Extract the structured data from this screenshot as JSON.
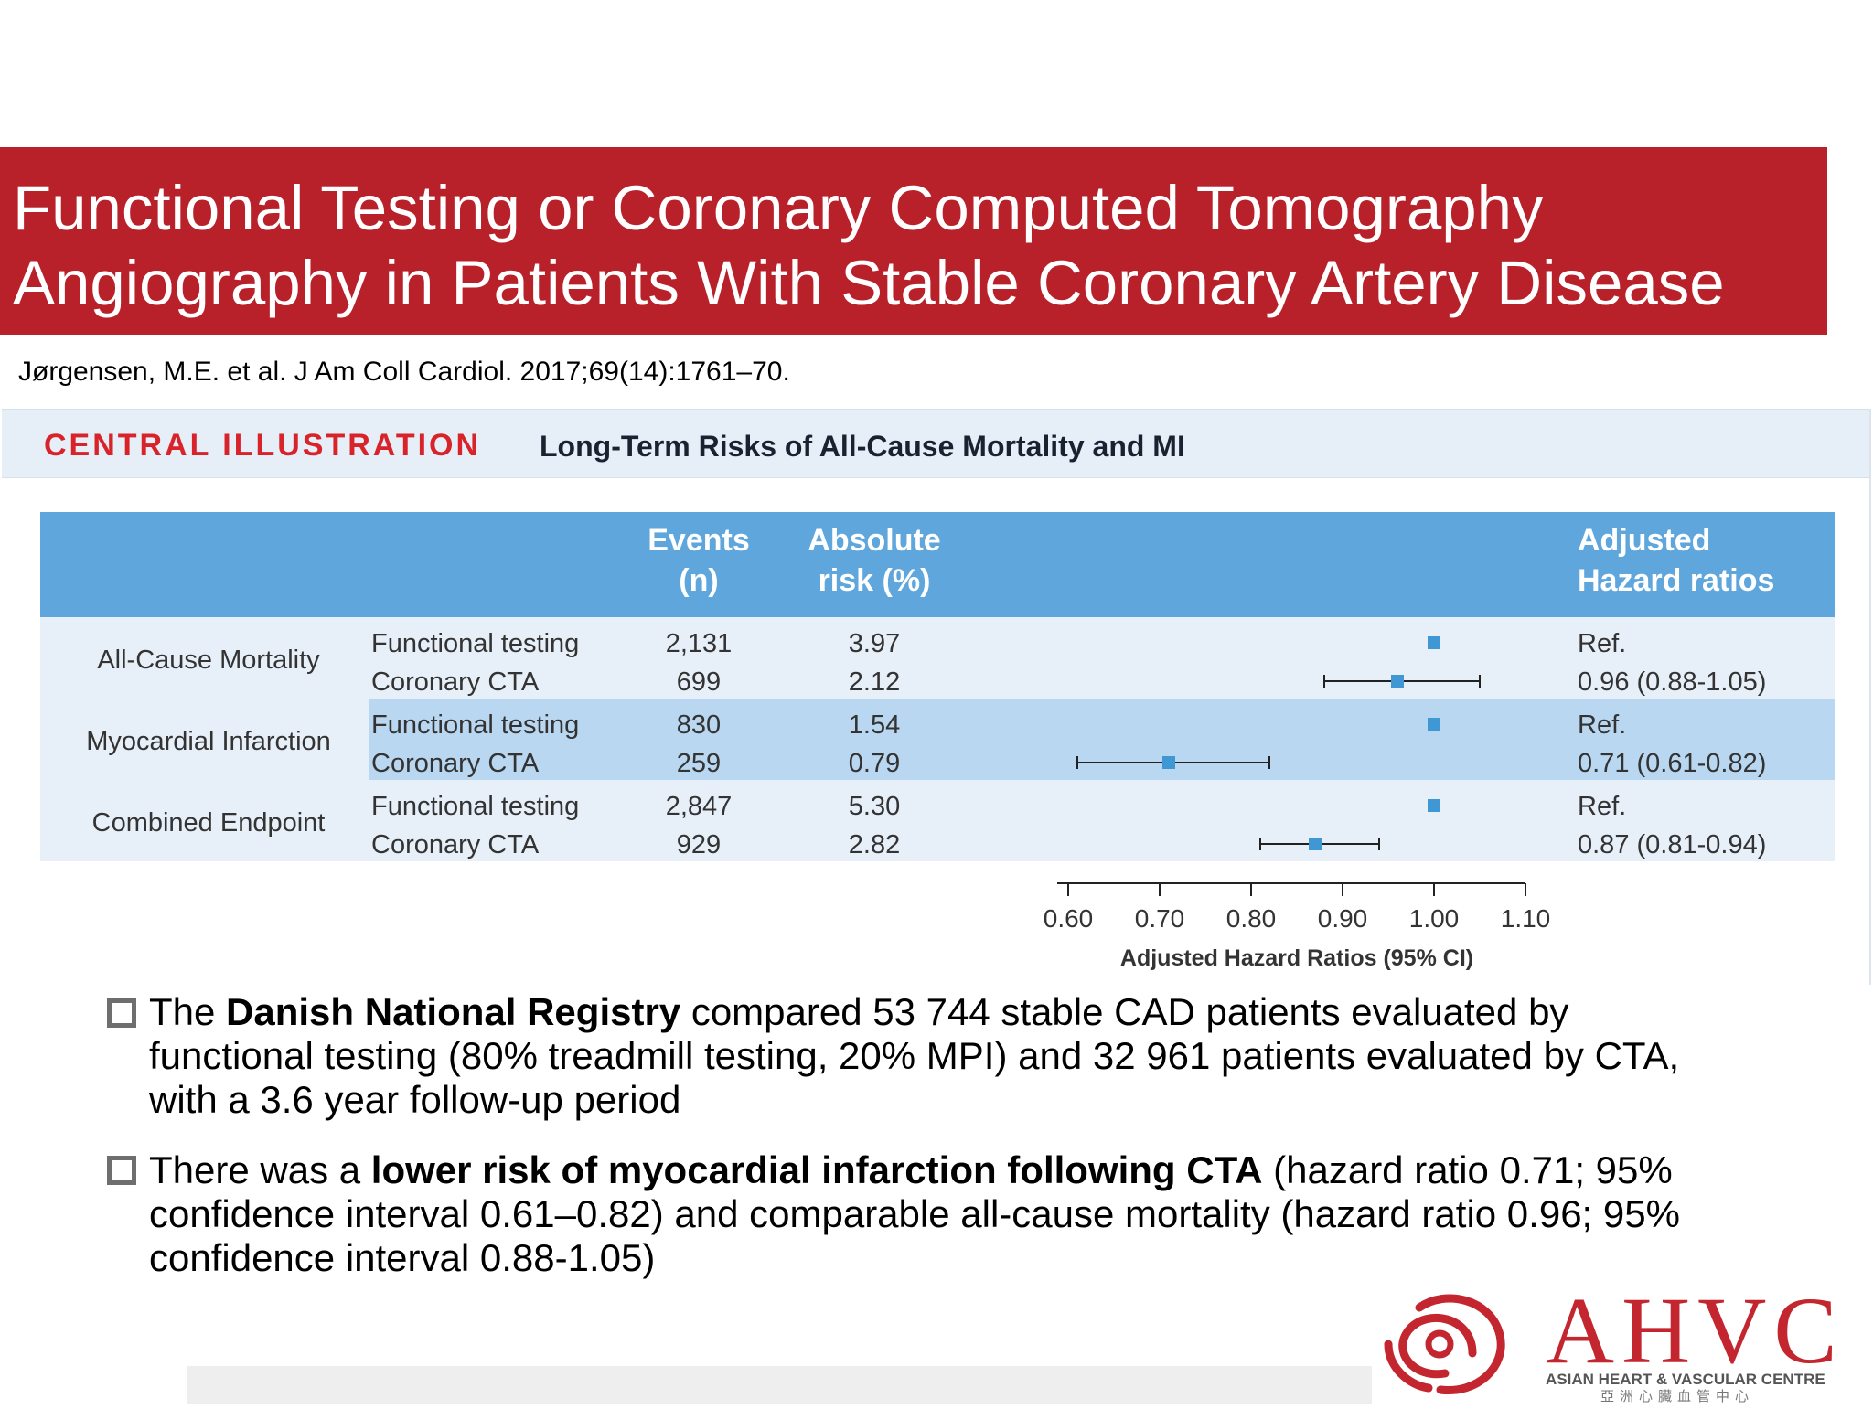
{
  "slide": {
    "title_line1": "Functional Testing or Coronary Computed Tomography",
    "title_line2": "Angiography in Patients With Stable Coronary Artery Disease",
    "citation": "Jørgensen, M.E. et al. J Am Coll Cardiol. 2017;69(14):1761–70."
  },
  "figure": {
    "label": "CENTRAL ILLUSTRATION",
    "caption": "Long-Term Risks of All-Cause Mortality and MI",
    "headers": {
      "events_1": "Events",
      "events_2": "(n)",
      "risk_1": "Absolute",
      "risk_2": "risk (%)",
      "hr_1": "Adjusted",
      "hr_2": "Hazard ratios"
    }
  },
  "chart_data": {
    "type": "forest",
    "xlabel": "Adjusted Hazard Ratios (95% CI)",
    "xlim": [
      0.6,
      1.1
    ],
    "xticks": [
      "0.60",
      "0.70",
      "0.80",
      "0.90",
      "1.00",
      "1.10"
    ],
    "groups": [
      {
        "outcome": "All-Cause Mortality",
        "rows": [
          {
            "arm": "Functional testing",
            "events": "2,131",
            "risk": "3.97",
            "hr_text": "Ref.",
            "hr": 1.0,
            "lo": null,
            "hi": null
          },
          {
            "arm": "Coronary CTA",
            "events": "699",
            "risk": "2.12",
            "hr_text": "0.96 (0.88-1.05)",
            "hr": 0.96,
            "lo": 0.88,
            "hi": 1.05
          }
        ]
      },
      {
        "outcome": "Myocardial Infarction",
        "rows": [
          {
            "arm": "Functional testing",
            "events": "830",
            "risk": "1.54",
            "hr_text": "Ref.",
            "hr": 1.0,
            "lo": null,
            "hi": null
          },
          {
            "arm": "Coronary CTA",
            "events": "259",
            "risk": "0.79",
            "hr_text": "0.71 (0.61-0.82)",
            "hr": 0.71,
            "lo": 0.61,
            "hi": 0.82
          }
        ]
      },
      {
        "outcome": "Combined Endpoint",
        "rows": [
          {
            "arm": "Functional testing",
            "events": "2,847",
            "risk": "5.30",
            "hr_text": "Ref.",
            "hr": 1.0,
            "lo": null,
            "hi": null
          },
          {
            "arm": "Coronary CTA",
            "events": "929",
            "risk": "2.82",
            "hr_text": "0.87 (0.81-0.94)",
            "hr": 0.87,
            "lo": 0.81,
            "hi": 0.94
          }
        ]
      }
    ]
  },
  "bullets": [
    {
      "pre": "The ",
      "bold": "Danish National Registry",
      "post": " compared 53 744 stable CAD patients evaluated by functional testing (80% treadmill testing, 20% MPI) and 32 961 patients evaluated by CTA, with a 3.6 year follow-up period"
    },
    {
      "pre": "There was a ",
      "bold": "lower risk of myocardial infarction following CTA",
      "post": " (hazard ratio 0.71; 95% confidence interval 0.61–0.82) and comparable all-cause mortality (hazard ratio 0.96; 95% confidence interval 0.88-1.05)"
    }
  ],
  "logo": {
    "text": "AHVC",
    "sub": "ASIAN HEART & VASCULAR CENTRE",
    "cjk": "亞洲心臟血管中心",
    "red": "#c3262e"
  },
  "colors": {
    "title_bg": "#b8212a",
    "header_blue": "#5ea6dc",
    "row_light": "#e7eff8",
    "row_mid": "#b9d7f0",
    "marker": "#3f97d4"
  }
}
